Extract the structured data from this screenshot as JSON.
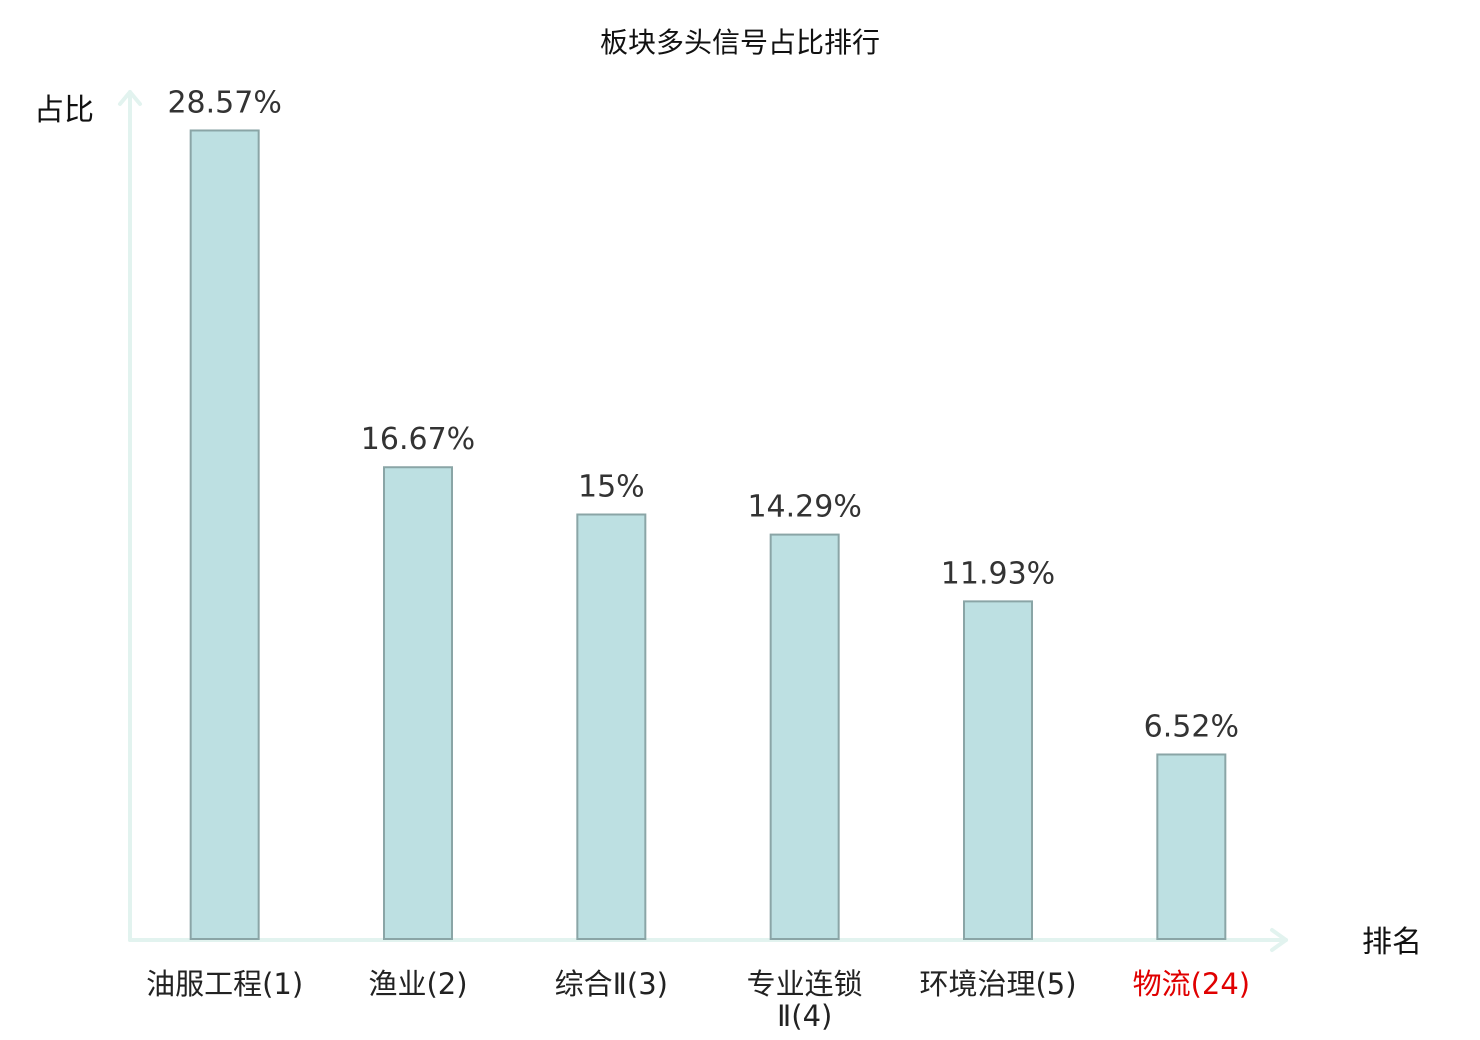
{
  "chart_data": {
    "type": "bar",
    "title": "板块多头信号占比排行",
    "ylabel": "占比",
    "xlabel": "排名",
    "ylim": [
      0,
      30
    ],
    "grid": false,
    "categories": [
      {
        "lines": [
          "油服工程(1)"
        ],
        "color": "#222222"
      },
      {
        "lines": [
          "渔业(2)"
        ],
        "color": "#222222"
      },
      {
        "lines": [
          "综合Ⅱ(3)"
        ],
        "color": "#222222"
      },
      {
        "lines": [
          "专业连锁",
          "Ⅱ(4)"
        ],
        "color": "#222222"
      },
      {
        "lines": [
          "环境治理(5)"
        ],
        "color": "#222222"
      },
      {
        "lines": [
          "物流(24)"
        ],
        "color": "#e00000"
      }
    ],
    "values": [
      28.57,
      16.67,
      15,
      14.29,
      11.93,
      6.52
    ],
    "value_labels": [
      "28.57%",
      "16.67%",
      "15%",
      "14.29%",
      "11.93%",
      "6.52%"
    ],
    "colors": {
      "bar_fill": "#bde0e2",
      "bar_stroke": "#8aa5a6",
      "axis": "#e2f3ef",
      "highlight": "#e00000"
    }
  }
}
